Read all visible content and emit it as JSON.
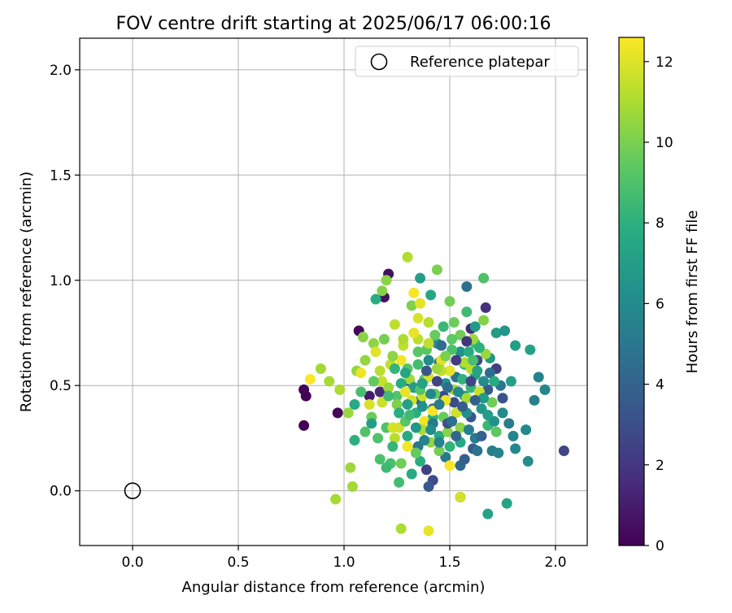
{
  "chart_data": {
    "type": "scatter",
    "title": "FOV centre drift starting at 2025/06/17 06:00:16",
    "xlabel": "Angular distance from reference (arcmin)",
    "ylabel": "Rotation from reference (arcmin)",
    "xlim": [
      -0.25,
      2.15
    ],
    "ylim": [
      -0.26,
      2.15
    ],
    "xticks": [
      "0.0",
      "0.5",
      "1.0",
      "1.5",
      "2.0"
    ],
    "yticks": [
      "0.0",
      "0.5",
      "1.0",
      "1.5",
      "2.0"
    ],
    "grid": true,
    "legend": {
      "position": "top-right",
      "entries": [
        "Reference platepar"
      ]
    },
    "reference_point": {
      "x": 0.0,
      "y": 0.0,
      "label": "Reference platepar"
    },
    "colorbar": {
      "label": "Hours from first FF file",
      "colormap": "viridis",
      "range": [
        0,
        12.6
      ],
      "ticks": [
        "0",
        "2",
        "4",
        "6",
        "8",
        "10",
        "12"
      ]
    },
    "columns": [
      "x_arcmin",
      "y_arcmin",
      "hours"
    ],
    "points": [
      [
        0.81,
        0.31,
        0.0
      ],
      [
        0.81,
        0.48,
        0.1
      ],
      [
        0.82,
        0.45,
        0.1
      ],
      [
        0.97,
        0.37,
        0.2
      ],
      [
        1.07,
        0.76,
        0.3
      ],
      [
        1.19,
        0.92,
        0.6
      ],
      [
        1.21,
        1.03,
        0.5
      ],
      [
        1.12,
        0.45,
        0.9
      ],
      [
        1.17,
        0.47,
        1.4
      ],
      [
        1.6,
        0.77,
        1.5
      ],
      [
        1.67,
        0.87,
        1.8
      ],
      [
        1.55,
        -0.03,
        2.0
      ],
      [
        1.72,
        0.58,
        2.3
      ],
      [
        2.04,
        0.19,
        2.6
      ],
      [
        1.39,
        0.1,
        2.4
      ],
      [
        1.42,
        0.05,
        3.0
      ],
      [
        1.4,
        0.02,
        3.5
      ],
      [
        1.52,
        0.42,
        3.0
      ],
      [
        1.47,
        0.45,
        2.8
      ],
      [
        1.63,
        0.62,
        2.9
      ],
      [
        1.75,
        0.44,
        3.2
      ],
      [
        1.6,
        0.35,
        3.3
      ],
      [
        1.68,
        0.48,
        3.6
      ],
      [
        1.31,
        0.52,
        3.7
      ],
      [
        1.36,
        0.43,
        3.9
      ],
      [
        1.42,
        0.39,
        4.1
      ],
      [
        1.55,
        0.12,
        4.3
      ],
      [
        1.58,
        0.97,
        4.6
      ],
      [
        1.53,
        0.54,
        4.7
      ],
      [
        1.45,
        0.61,
        4.8
      ],
      [
        1.35,
        0.21,
        5.0
      ],
      [
        1.48,
        0.16,
        5.1
      ],
      [
        1.62,
        0.25,
        5.2
      ],
      [
        1.7,
        0.19,
        5.4
      ],
      [
        1.73,
        0.18,
        5.6
      ],
      [
        1.8,
        0.26,
        5.7
      ],
      [
        1.86,
        0.29,
        5.9
      ],
      [
        1.9,
        0.43,
        5.5
      ],
      [
        1.92,
        0.54,
        5.6
      ],
      [
        1.95,
        0.48,
        5.8
      ],
      [
        1.81,
        0.2,
        5.9
      ],
      [
        1.87,
        0.14,
        6.1
      ],
      [
        1.66,
        0.52,
        6.0
      ],
      [
        1.58,
        0.37,
        6.2
      ],
      [
        1.55,
        0.66,
        6.3
      ],
      [
        1.48,
        0.51,
        6.4
      ],
      [
        1.4,
        0.62,
        6.1
      ],
      [
        1.44,
        0.7,
        6.2
      ],
      [
        1.57,
        0.45,
        6.5
      ],
      [
        1.65,
        0.39,
        6.6
      ],
      [
        1.69,
        0.63,
        6.7
      ],
      [
        1.62,
        0.78,
        6.8
      ],
      [
        1.72,
        0.75,
        6.9
      ],
      [
        1.76,
        0.76,
        6.5
      ],
      [
        1.81,
        0.69,
        7.0
      ],
      [
        1.88,
        0.67,
        7.2
      ],
      [
        1.79,
        0.52,
        7.1
      ],
      [
        1.68,
        -0.11,
        7.2
      ],
      [
        1.77,
        -0.06,
        7.3
      ],
      [
        1.62,
        0.55,
        7.4
      ],
      [
        1.55,
        0.23,
        7.5
      ],
      [
        1.45,
        0.26,
        7.6
      ],
      [
        1.32,
        0.08,
        7.6
      ],
      [
        1.3,
        0.26,
        7.7
      ],
      [
        1.36,
        0.14,
        7.8
      ],
      [
        1.34,
        0.37,
        7.9
      ],
      [
        1.42,
        0.35,
        8.0
      ],
      [
        1.5,
        0.21,
        8.1
      ],
      [
        1.57,
        0.6,
        8.2
      ],
      [
        1.6,
        0.49,
        8.3
      ],
      [
        1.68,
        0.31,
        8.4
      ],
      [
        1.62,
        0.7,
        8.5
      ],
      [
        1.58,
        0.85,
        8.6
      ],
      [
        1.36,
        1.01,
        7.0
      ],
      [
        1.41,
        0.93,
        7.5
      ],
      [
        1.66,
        1.01,
        9.0
      ],
      [
        1.05,
        0.41,
        7.6
      ],
      [
        1.05,
        0.24,
        8.0
      ],
      [
        1.15,
        0.91,
        7.8
      ],
      [
        1.26,
        0.04,
        8.7
      ],
      [
        1.22,
        0.13,
        8.8
      ],
      [
        1.17,
        0.15,
        8.9
      ],
      [
        1.2,
        0.3,
        9.0
      ],
      [
        1.25,
        0.45,
        9.1
      ],
      [
        1.3,
        0.58,
        9.2
      ],
      [
        1.35,
        0.66,
        9.3
      ],
      [
        1.38,
        0.53,
        9.4
      ],
      [
        1.43,
        0.46,
        9.5
      ],
      [
        1.47,
        0.35,
        9.6
      ],
      [
        1.52,
        0.8,
        9.7
      ],
      [
        1.55,
        0.74,
        9.8
      ],
      [
        1.5,
        0.9,
        9.9
      ],
      [
        1.44,
        1.05,
        10.0
      ],
      [
        1.32,
        0.88,
        10.1
      ],
      [
        1.18,
        0.95,
        10.2
      ],
      [
        1.2,
        1.0,
        10.3
      ],
      [
        1.09,
        0.73,
        10.3
      ],
      [
        1.14,
        0.7,
        10.4
      ],
      [
        1.1,
        0.62,
        10.5
      ],
      [
        1.06,
        0.57,
        10.5
      ],
      [
        1.02,
        0.37,
        10.6
      ],
      [
        1.03,
        0.11,
        10.7
      ],
      [
        1.04,
        0.02,
        10.8
      ],
      [
        0.96,
        -0.04,
        10.9
      ],
      [
        0.89,
        0.58,
        10.8
      ],
      [
        0.93,
        0.52,
        10.9
      ],
      [
        0.98,
        0.48,
        11.0
      ],
      [
        1.27,
        -0.18,
        11.0
      ],
      [
        1.3,
        1.11,
        11.1
      ],
      [
        1.4,
        0.8,
        11.2
      ],
      [
        1.35,
        0.72,
        11.3
      ],
      [
        1.24,
        0.79,
        11.4
      ],
      [
        1.28,
        0.69,
        11.4
      ],
      [
        1.22,
        0.6,
        11.5
      ],
      [
        1.18,
        0.42,
        11.6
      ],
      [
        1.26,
        0.3,
        11.7
      ],
      [
        1.32,
        0.43,
        11.8
      ],
      [
        1.4,
        0.54,
        11.9
      ],
      [
        1.46,
        0.62,
        12.0
      ],
      [
        1.5,
        0.57,
        12.1
      ],
      [
        1.48,
        0.43,
        12.2
      ],
      [
        1.38,
        0.33,
        12.3
      ],
      [
        1.3,
        0.21,
        12.4
      ],
      [
        1.5,
        0.12,
        12.5
      ],
      [
        1.55,
        -0.03,
        11.8
      ],
      [
        1.4,
        -0.19,
        12.2
      ],
      [
        1.33,
        0.94,
        12.5
      ],
      [
        1.36,
        0.89,
        12.1
      ],
      [
        0.84,
        0.53,
        12.6
      ],
      [
        1.08,
        0.56,
        12.3
      ],
      [
        1.12,
        0.41,
        11.9
      ],
      [
        1.15,
        0.66,
        12.0
      ],
      [
        1.18,
        0.52,
        11.5
      ],
      [
        1.24,
        0.25,
        11.2
      ],
      [
        1.27,
        0.62,
        12.4
      ],
      [
        1.33,
        0.75,
        12.2
      ],
      [
        1.37,
        0.45,
        11.6
      ],
      [
        1.42,
        0.38,
        12.5
      ],
      [
        1.46,
        0.57,
        11.4
      ],
      [
        1.52,
        0.48,
        10.8
      ],
      [
        1.55,
        0.3,
        10.4
      ],
      [
        1.58,
        0.44,
        10.9
      ],
      [
        1.6,
        0.58,
        11.3
      ],
      [
        1.64,
        0.47,
        11.6
      ],
      [
        1.67,
        0.65,
        10.6
      ],
      [
        1.7,
        0.42,
        9.8
      ],
      [
        1.72,
        0.28,
        9.4
      ],
      [
        1.66,
        0.81,
        10.2
      ],
      [
        1.61,
        0.72,
        10.7
      ],
      [
        1.57,
        0.61,
        11.1
      ],
      [
        1.53,
        0.37,
        11.7
      ],
      [
        1.49,
        0.28,
        10.3
      ],
      [
        1.45,
        0.19,
        9.9
      ],
      [
        1.41,
        0.23,
        10.5
      ],
      [
        1.37,
        0.29,
        11.0
      ],
      [
        1.34,
        0.18,
        9.6
      ],
      [
        1.29,
        0.33,
        9.2
      ],
      [
        1.25,
        0.41,
        10.1
      ],
      [
        1.21,
        0.49,
        10.6
      ],
      [
        1.17,
        0.57,
        11.3
      ],
      [
        1.13,
        0.35,
        9.7
      ],
      [
        1.1,
        0.28,
        9.1
      ],
      [
        1.08,
        0.47,
        8.8
      ],
      [
        1.14,
        0.52,
        9.5
      ],
      [
        1.19,
        0.72,
        9.9
      ],
      [
        1.23,
        0.64,
        10.4
      ],
      [
        1.28,
        0.72,
        11.0
      ],
      [
        1.31,
        0.53,
        10.8
      ],
      [
        1.35,
        0.6,
        8.7
      ],
      [
        1.39,
        0.67,
        9.3
      ],
      [
        1.43,
        0.74,
        9.6
      ],
      [
        1.47,
        0.78,
        8.4
      ],
      [
        1.51,
        0.67,
        8.9
      ],
      [
        1.56,
        0.53,
        8.1
      ],
      [
        1.59,
        0.66,
        7.8
      ],
      [
        1.63,
        0.57,
        7.3
      ],
      [
        1.66,
        0.44,
        6.8
      ],
      [
        1.71,
        0.33,
        6.4
      ],
      [
        1.75,
        0.37,
        6.0
      ],
      [
        1.78,
        0.32,
        5.2
      ],
      [
        1.74,
        0.5,
        4.9
      ],
      [
        1.69,
        0.56,
        4.4
      ],
      [
        1.65,
        0.26,
        4.0
      ],
      [
        1.61,
        0.2,
        3.6
      ],
      [
        1.57,
        0.15,
        3.8
      ],
      [
        1.53,
        0.26,
        4.2
      ],
      [
        1.49,
        0.49,
        4.5
      ],
      [
        1.45,
        0.41,
        5.3
      ],
      [
        1.41,
        0.46,
        5.8
      ],
      [
        1.37,
        0.4,
        6.3
      ],
      [
        1.33,
        0.49,
        6.9
      ],
      [
        1.29,
        0.56,
        7.4
      ],
      [
        1.26,
        0.37,
        7.9
      ],
      [
        1.23,
        0.21,
        8.3
      ],
      [
        1.2,
        0.11,
        8.5
      ],
      [
        1.16,
        0.25,
        9.0
      ],
      [
        1.13,
        0.32,
        7.0
      ],
      [
        1.39,
        0.57,
        3.4
      ],
      [
        1.44,
        0.52,
        2.5
      ],
      [
        1.49,
        0.32,
        3.1
      ],
      [
        1.53,
        0.62,
        2.2
      ],
      [
        1.58,
        0.71,
        1.9
      ],
      [
        1.62,
        0.43,
        3.9
      ],
      [
        1.46,
        0.69,
        4.5
      ],
      [
        1.42,
        0.32,
        5.0
      ],
      [
        1.38,
        0.24,
        5.6
      ],
      [
        1.34,
        0.3,
        6.6
      ],
      [
        1.3,
        0.41,
        7.1
      ],
      [
        1.27,
        0.51,
        7.7
      ],
      [
        1.24,
        0.58,
        8.2
      ],
      [
        1.21,
        0.45,
        8.6
      ],
      [
        1.36,
        0.48,
        9.1
      ],
      [
        1.54,
        0.47,
        5.9
      ],
      [
        1.59,
        0.29,
        5.4
      ],
      [
        1.63,
        0.19,
        4.8
      ],
      [
        1.68,
        0.36,
        6.9
      ],
      [
        1.71,
        0.52,
        7.6
      ],
      [
        1.64,
        0.68,
        8.0
      ],
      [
        1.61,
        0.62,
        8.8
      ],
      [
        1.51,
        0.72,
        9.4
      ],
      [
        1.48,
        0.64,
        10.0
      ],
      [
        1.44,
        0.58,
        10.7
      ],
      [
        1.4,
        0.7,
        11.4
      ],
      [
        1.35,
        0.82,
        11.9
      ],
      [
        1.29,
        0.47,
        12.1
      ],
      [
        1.23,
        0.3,
        11.8
      ],
      [
        1.27,
        0.13,
        9.8
      ],
      [
        1.31,
        0.36,
        8.5
      ],
      [
        1.37,
        0.51,
        7.2
      ],
      [
        1.41,
        0.29,
        6.1
      ],
      [
        1.45,
        0.23,
        5.5
      ],
      [
        1.51,
        0.33,
        4.6
      ],
      [
        1.56,
        0.4,
        3.7
      ],
      [
        1.6,
        0.52,
        2.7
      ]
    ]
  }
}
